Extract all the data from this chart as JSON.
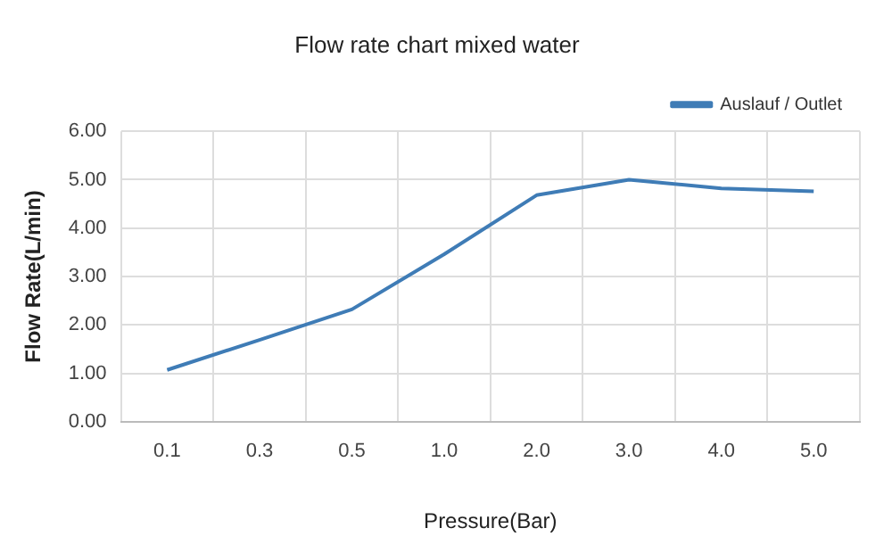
{
  "chart_data": {
    "type": "line",
    "title": "Flow rate chart mixed water",
    "xlabel": "Pressure(Bar)",
    "ylabel": "Flow Rate(L/min)",
    "categories": [
      "0.1",
      "0.3",
      "0.5",
      "1.0",
      "2.0",
      "3.0",
      "4.0",
      "5.0"
    ],
    "series": [
      {
        "name": "Auslauf / Outlet",
        "color": "#3f7cb6",
        "values": [
          1.07,
          1.69,
          2.32,
          3.46,
          4.68,
          5.0,
          4.82,
          4.76
        ]
      }
    ],
    "ylim": [
      0,
      6
    ],
    "yticks": [
      {
        "value": 0,
        "label": "0.00"
      },
      {
        "value": 1,
        "label": "1.00"
      },
      {
        "value": 2,
        "label": "2.00"
      },
      {
        "value": 3,
        "label": "3.00"
      },
      {
        "value": 4,
        "label": "4.00"
      },
      {
        "value": 5,
        "label": "5.00"
      },
      {
        "value": 6,
        "label": "6.00"
      }
    ],
    "grid": true,
    "legend": "top right",
    "marker": "none",
    "line_style": "solid"
  }
}
